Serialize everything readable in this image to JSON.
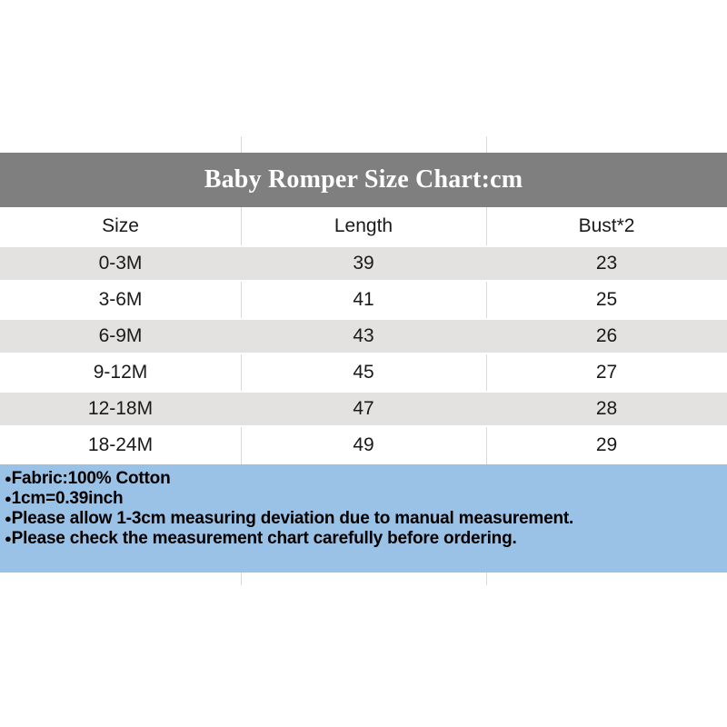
{
  "chart_data": {
    "type": "table",
    "title": "Baby Romper Size Chart:cm",
    "columns": [
      "Size",
      "Length",
      "Bust*2"
    ],
    "rows": [
      [
        "0-3M",
        "39",
        "23"
      ],
      [
        "3-6M",
        "41",
        "25"
      ],
      [
        "6-9M",
        "43",
        "26"
      ],
      [
        "9-12M",
        "45",
        "27"
      ],
      [
        "12-18M",
        "47",
        "28"
      ],
      [
        "18-24M",
        "49",
        "29"
      ]
    ],
    "notes": [
      "Fabric:100% Cotton",
      "1cm=0.39inch",
      "Please allow 1-3cm measuring deviation due to manual measurement.",
      "Please check the measurement chart carefully before ordering."
    ]
  },
  "notes_meta": {
    "bullet_icon": "●"
  },
  "colors": {
    "banner_bg": "#7f7f7f",
    "banner_text": "#ffffff",
    "row_stripe": "#e3e2e0",
    "notes_bg": "#9ac1e6",
    "divider": "#d9d9d9",
    "text": "#1a1a1a"
  }
}
